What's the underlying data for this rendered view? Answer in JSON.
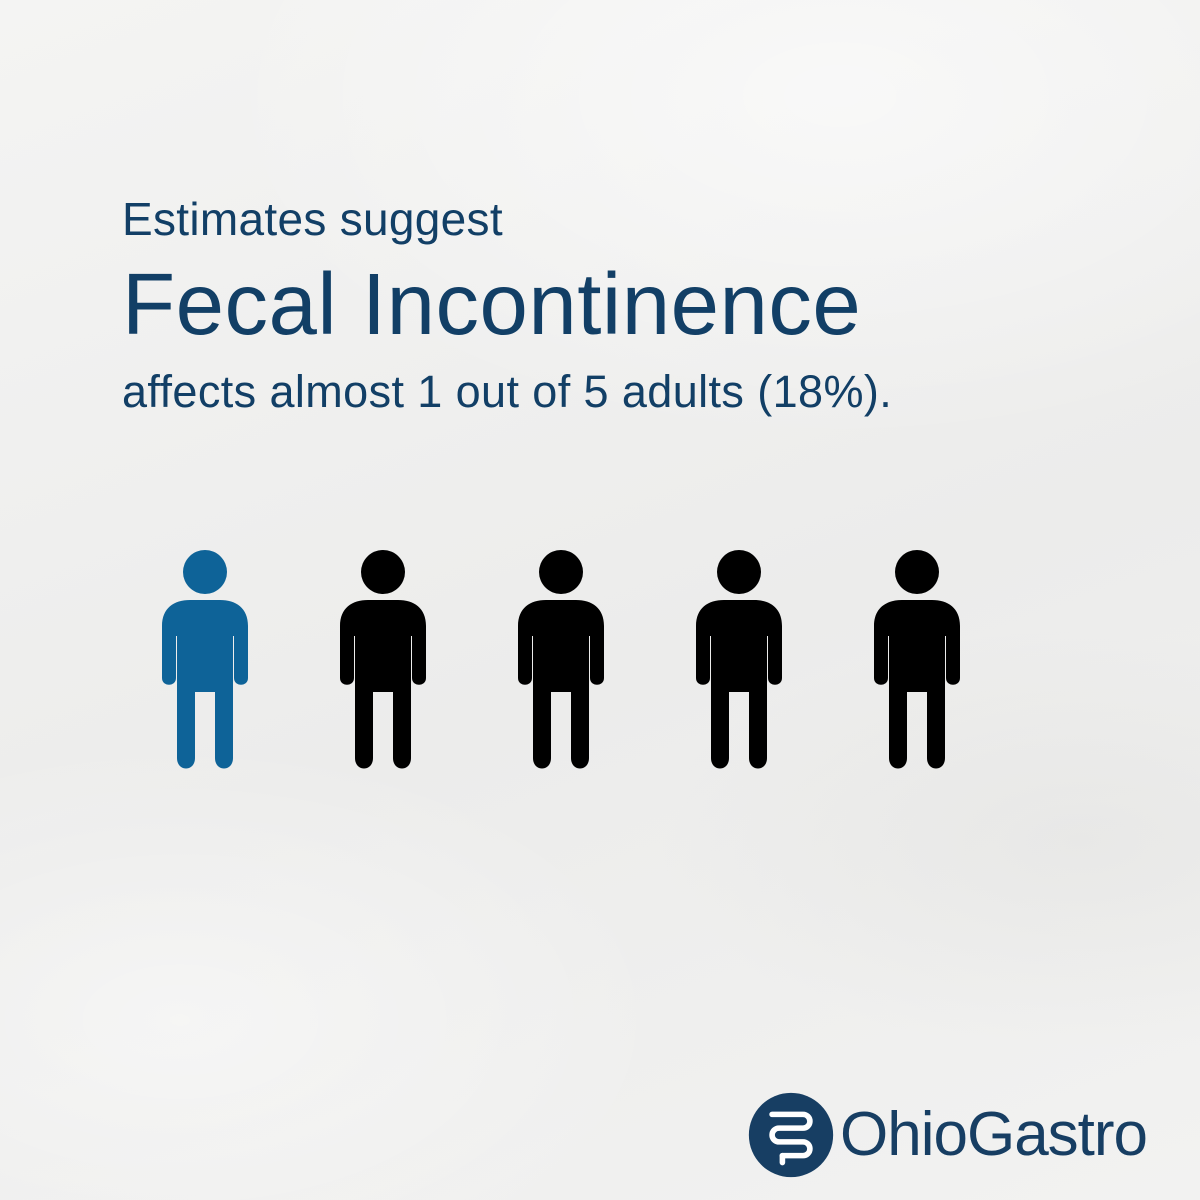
{
  "headline": {
    "intro": "Estimates suggest",
    "title": "Fecal Incontinence",
    "statement": "affects almost 1 out of 5 adults (18%)."
  },
  "people_graphic": {
    "total": 5,
    "highlighted": 1,
    "highlight_color": "#0e6398",
    "default_color": "#000000"
  },
  "colors": {
    "text": "#123f66",
    "background": "#f1f1f0"
  },
  "logo": {
    "text": "OhioGastro",
    "icon": "intestine-icon",
    "color": "#173e63"
  }
}
